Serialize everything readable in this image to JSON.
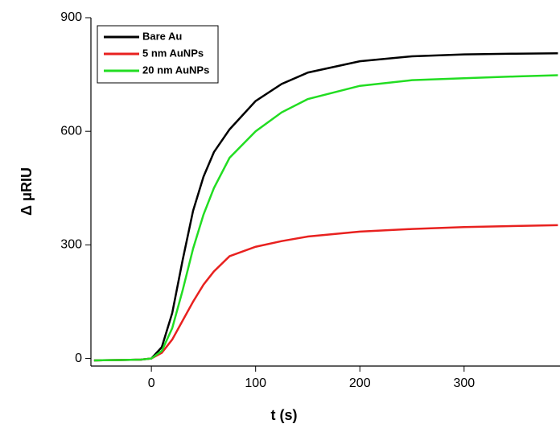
{
  "chart_data": {
    "type": "line",
    "x_label": "t (s)",
    "y_label": "Δ μRIU",
    "x": [
      -55,
      -30,
      -10,
      0,
      10,
      20,
      30,
      40,
      50,
      60,
      75,
      100,
      125,
      150,
      200,
      250,
      300,
      350,
      390
    ],
    "series": [
      {
        "name": "Bare Au",
        "color": "#000000",
        "values": [
          -5,
          -4,
          -3,
          0,
          30,
          120,
          260,
          390,
          480,
          545,
          605,
          680,
          725,
          755,
          785,
          798,
          803,
          805,
          806
        ]
      },
      {
        "name": "5 nm AuNPs",
        "color": "#e8211f",
        "values": [
          -5,
          -4,
          -3,
          0,
          15,
          50,
          100,
          150,
          195,
          230,
          270,
          295,
          310,
          322,
          335,
          342,
          347,
          350,
          352
        ]
      },
      {
        "name": "20 nm AuNPs",
        "color": "#22dd22",
        "values": [
          -5,
          -4,
          -3,
          0,
          20,
          80,
          180,
          290,
          380,
          450,
          530,
          600,
          650,
          685,
          720,
          735,
          740,
          745,
          748
        ]
      }
    ],
    "xlim": [
      -58,
      392
    ],
    "ylim": [
      -20,
      900
    ],
    "xticks": [
      0,
      100,
      200,
      300
    ],
    "yticks": [
      0,
      300,
      600,
      900
    ],
    "legend": "upper-left"
  }
}
